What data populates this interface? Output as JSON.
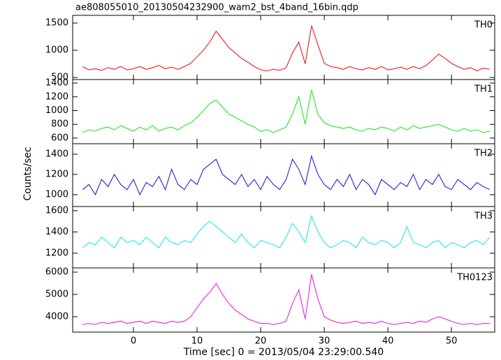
{
  "chart_data": {
    "type": "line",
    "title": "ae808055010_20130504232900_wam2_bst_4band_16bin.qdp",
    "xlabel": "Time [sec] 0 = 2013/05/04 23:29:00.540",
    "ylabel": "Counts/sec",
    "xlim": [
      -9.56,
      56.8
    ],
    "xticks": [
      0,
      10,
      20,
      30,
      40,
      50
    ],
    "x": [
      -8,
      -7,
      -6,
      -5,
      -4,
      -3,
      -2,
      -1,
      0,
      1,
      2,
      3,
      4,
      5,
      6,
      7,
      8,
      9,
      10,
      11,
      12,
      13,
      14,
      15,
      16,
      17,
      18,
      19,
      20,
      21,
      22,
      23,
      24,
      25,
      26,
      27,
      28,
      29,
      30,
      31,
      32,
      33,
      34,
      35,
      36,
      37,
      38,
      39,
      40,
      41,
      42,
      43,
      44,
      45,
      46,
      47,
      48,
      49,
      50,
      51,
      52,
      53,
      54,
      55,
      56
    ],
    "panels": [
      {
        "name": "TH0",
        "color": "#ee2c2c",
        "ylim": [
          462,
          1641
        ],
        "yticks": [
          500,
          1000,
          1500
        ],
        "values": [
          700,
          640,
          660,
          630,
          680,
          650,
          700,
          640,
          660,
          700,
          650,
          680,
          720,
          660,
          690,
          650,
          700,
          760,
          880,
          1000,
          1150,
          1350,
          1200,
          1050,
          950,
          850,
          780,
          700,
          640,
          620,
          650,
          630,
          680,
          950,
          1150,
          750,
          1450,
          1100,
          760,
          700,
          680,
          650,
          700,
          660,
          640,
          680,
          650,
          700,
          640,
          660,
          690,
          650,
          700,
          660,
          720,
          820,
          930,
          850,
          760,
          700,
          650,
          680,
          620,
          670,
          650
        ]
      },
      {
        "name": "TH1",
        "color": "#33e833",
        "ylim": [
          518,
          1451
        ],
        "yticks": [
          600,
          800,
          1000,
          1200,
          1400
        ],
        "values": [
          680,
          720,
          700,
          740,
          760,
          720,
          780,
          740,
          700,
          760,
          720,
          780,
          700,
          740,
          760,
          720,
          780,
          820,
          900,
          1000,
          1100,
          1150,
          1050,
          950,
          900,
          850,
          800,
          760,
          700,
          720,
          680,
          720,
          760,
          950,
          1200,
          800,
          1300,
          950,
          820,
          780,
          760,
          740,
          760,
          720,
          700,
          740,
          720,
          760,
          740,
          700,
          760,
          720,
          780,
          740,
          760,
          780,
          800,
          760,
          720,
          700,
          740,
          700,
          720,
          680,
          700
        ]
      },
      {
        "name": "TH2",
        "color": "#3333d8",
        "ylim": [
          883,
          1503
        ],
        "yticks": [
          1000,
          1200,
          1400
        ],
        "values": [
          1050,
          1100,
          1000,
          1150,
          1080,
          1200,
          1100,
          1050,
          1150,
          1000,
          1120,
          1080,
          1180,
          1050,
          1250,
          1100,
          1050,
          1150,
          1100,
          1250,
          1300,
          1350,
          1200,
          1150,
          1100,
          1200,
          1080,
          1150,
          1050,
          1180,
          1100,
          1050,
          1150,
          1350,
          1250,
          1100,
          1380,
          1200,
          1100,
          1050,
          1150,
          1080,
          1200,
          1050,
          1150,
          1100,
          1000,
          1150,
          1100,
          1050,
          1120,
          1080,
          1200,
          1050,
          1150,
          1100,
          1200,
          1080,
          1050,
          1150,
          1100,
          1050,
          1120,
          1080,
          1050
        ]
      },
      {
        "name": "TH3",
        "color": "#33e8e8",
        "ylim": [
          1062,
          1639
        ],
        "yticks": [
          1200,
          1400,
          1600
        ],
        "values": [
          1250,
          1300,
          1280,
          1350,
          1300,
          1250,
          1350,
          1300,
          1320,
          1280,
          1350,
          1300,
          1250,
          1350,
          1300,
          1280,
          1320,
          1300,
          1380,
          1450,
          1500,
          1450,
          1400,
          1350,
          1300,
          1380,
          1300,
          1250,
          1320,
          1300,
          1280,
          1250,
          1350,
          1480,
          1400,
          1300,
          1550,
          1400,
          1300,
          1250,
          1280,
          1320,
          1300,
          1250,
          1350,
          1300,
          1280,
          1320,
          1300,
          1250,
          1300,
          1450,
          1300,
          1280,
          1250,
          1300,
          1320,
          1250,
          1300,
          1280,
          1250,
          1300,
          1320,
          1280,
          1350
        ]
      },
      {
        "name": "TH0123",
        "color": "#e833e8",
        "ylim": [
          3312,
          6188
        ],
        "yticks": [
          4000,
          5000,
          6000
        ],
        "values": [
          3650,
          3700,
          3650,
          3750,
          3700,
          3750,
          3800,
          3700,
          3750,
          3800,
          3700,
          3800,
          3750,
          3700,
          3800,
          3750,
          3800,
          4000,
          4400,
          4800,
          5100,
          5500,
          5000,
          4600,
          4300,
          4100,
          3900,
          3800,
          3700,
          3700,
          3650,
          3700,
          3800,
          4600,
          5200,
          3900,
          5900,
          4800,
          4000,
          3850,
          3750,
          3700,
          3750,
          3800,
          3700,
          3750,
          3700,
          3800,
          3700,
          3650,
          3700,
          3750,
          3700,
          3800,
          3750,
          3900,
          4000,
          3900,
          3800,
          3700,
          3650,
          3700,
          3650,
          3700,
          3700
        ]
      }
    ]
  }
}
